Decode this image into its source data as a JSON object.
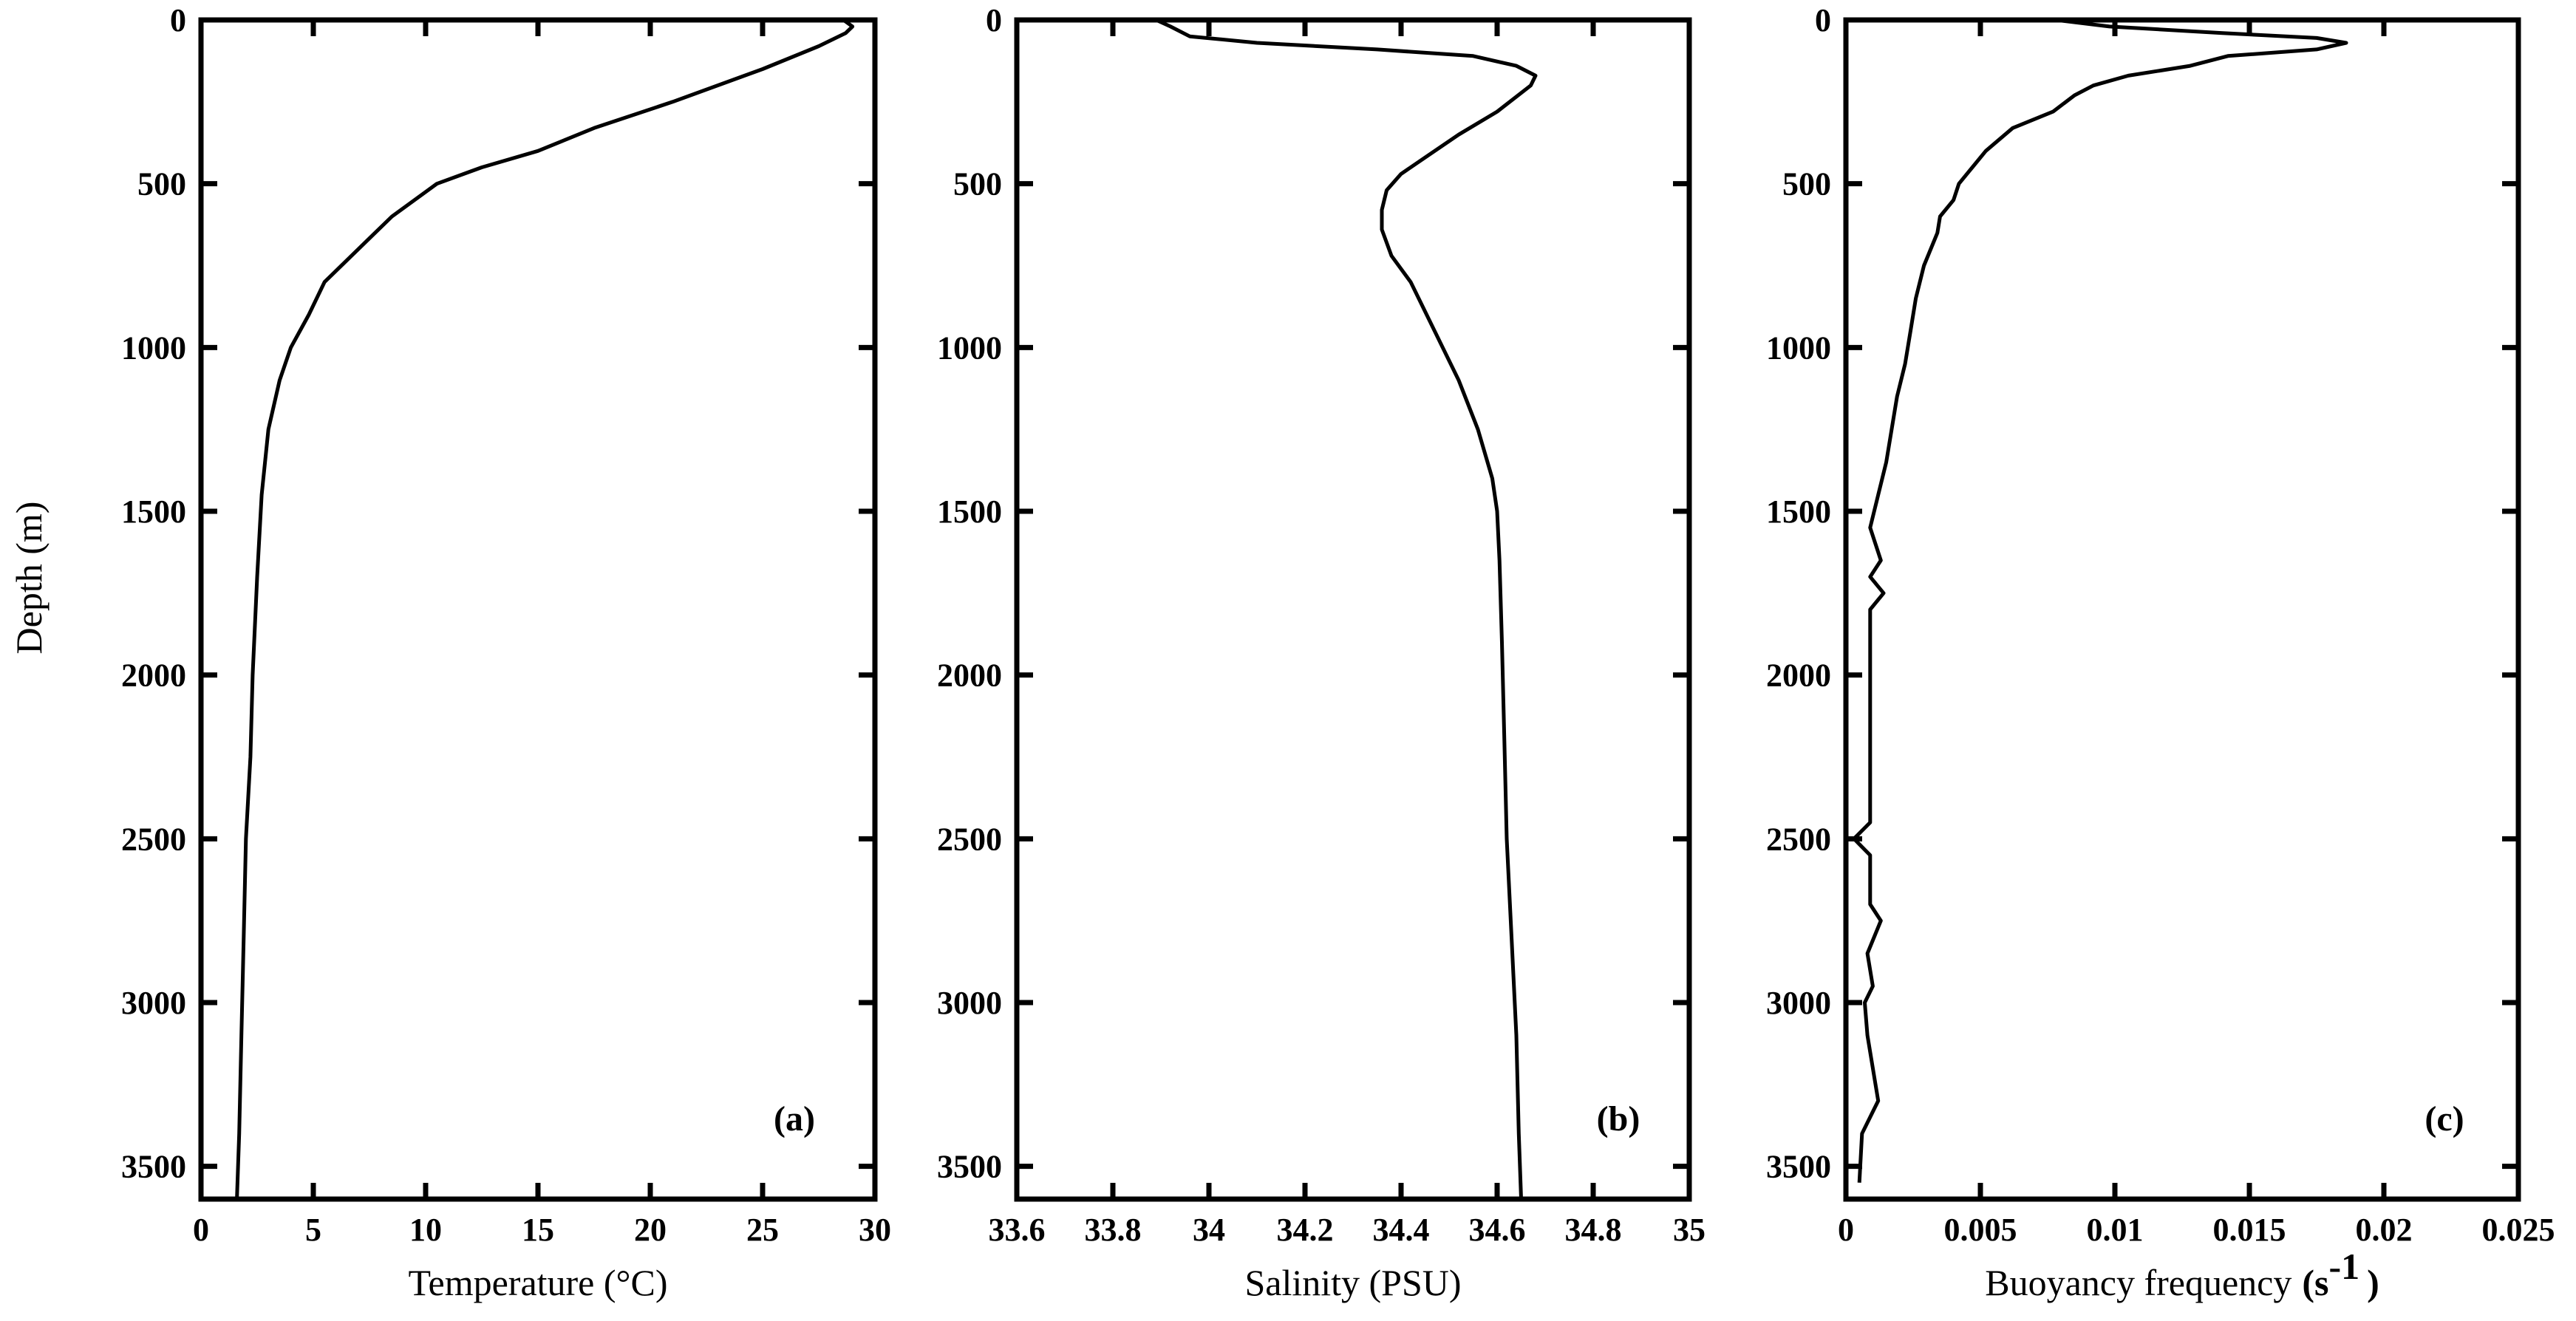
{
  "chart_data": [
    {
      "type": "line",
      "panel_label": "(a)",
      "xlabel": "Temperature (°C)",
      "ylabel": "Depth (m)",
      "xlim": [
        0,
        30
      ],
      "ylim": [
        3600,
        0
      ],
      "y_inverted": true,
      "x_ticks": [
        "0",
        "5",
        "10",
        "15",
        "20",
        "25",
        "30"
      ],
      "y_ticks": [
        "0",
        "500",
        "1000",
        "1500",
        "2000",
        "2500",
        "3000",
        "3500"
      ],
      "grid": false,
      "series": [
        {
          "x": [
            28.6,
            29.0,
            28.7,
            27.5,
            25.0,
            21.0,
            17.5,
            15.0,
            12.5,
            10.5,
            8.5,
            7.0,
            5.5,
            4.8,
            4.0,
            3.5,
            3.0,
            2.7,
            2.5,
            2.3,
            2.2,
            2.0,
            1.9,
            1.8,
            1.7,
            1.6
          ],
          "y": [
            0,
            20,
            40,
            80,
            150,
            250,
            330,
            400,
            450,
            500,
            600,
            700,
            800,
            900,
            1000,
            1100,
            1250,
            1450,
            1700,
            2000,
            2250,
            2500,
            2800,
            3100,
            3400,
            3600
          ]
        }
      ]
    },
    {
      "type": "line",
      "panel_label": "(b)",
      "xlabel": "Salinity (PSU)",
      "ylabel": "",
      "xlim": [
        33.6,
        35
      ],
      "ylim": [
        3600,
        0
      ],
      "y_inverted": true,
      "x_ticks": [
        "33.6",
        "33.8",
        "34",
        "34.2",
        "34.4",
        "34.6",
        "34.8",
        "35"
      ],
      "y_ticks": [
        "0",
        "500",
        "1000",
        "1500",
        "2000",
        "2500",
        "3000",
        "3500"
      ],
      "grid": false,
      "series": [
        {
          "x": [
            33.89,
            33.92,
            33.96,
            34.1,
            34.35,
            34.55,
            34.64,
            34.68,
            34.67,
            34.6,
            34.52,
            34.45,
            34.4,
            34.37,
            34.36,
            34.36,
            34.38,
            34.42,
            34.47,
            34.52,
            34.56,
            34.59,
            34.6,
            34.605,
            34.61,
            34.615,
            34.62,
            34.63,
            34.64,
            34.645,
            34.65
          ],
          "y": [
            0,
            20,
            50,
            70,
            90,
            110,
            140,
            170,
            200,
            280,
            350,
            420,
            470,
            520,
            580,
            640,
            720,
            800,
            950,
            1100,
            1250,
            1400,
            1500,
            1650,
            1900,
            2200,
            2500,
            2800,
            3100,
            3400,
            3600
          ]
        }
      ]
    },
    {
      "type": "line",
      "panel_label": "(c)",
      "xlabel": "Buoyancy frequency",
      "xlabel_unit_base": "s",
      "xlabel_unit_exp": "-1",
      "ylabel": "",
      "xlim": [
        0,
        0.025
      ],
      "ylim": [
        3600,
        0
      ],
      "y_inverted": true,
      "x_ticks": [
        "0",
        "0.005",
        "0.01",
        "0.015",
        "0.02",
        "0.025"
      ],
      "y_ticks": [
        "0",
        "500",
        "1000",
        "1500",
        "2000",
        "2500",
        "3000",
        "3500"
      ],
      "grid": false,
      "series": [
        {
          "x": [
            0.0078,
            0.0098,
            0.014,
            0.0175,
            0.0186,
            0.0175,
            0.0142,
            0.0128,
            0.0105,
            0.0092,
            0.0085,
            0.0077,
            0.0062,
            0.0052,
            0.0047,
            0.0042,
            0.004,
            0.0035,
            0.0034,
            0.0029,
            0.0026,
            0.0024,
            0.0022,
            0.0019,
            0.0017,
            0.0015,
            0.0012,
            0.0009,
            0.0013,
            0.0009,
            0.0014,
            0.0009,
            0.0009,
            0.0009,
            0.0009,
            0.0003,
            0.0009,
            0.0009,
            0.0013,
            0.0008,
            0.001,
            0.0007,
            0.0008,
            0.0012,
            0.0006,
            0.0005
          ],
          "y": [
            0,
            20,
            40,
            55,
            70,
            90,
            110,
            140,
            170,
            200,
            230,
            280,
            330,
            400,
            450,
            500,
            550,
            600,
            650,
            750,
            850,
            950,
            1050,
            1150,
            1250,
            1350,
            1450,
            1550,
            1650,
            1700,
            1750,
            1800,
            1900,
            2100,
            2450,
            2500,
            2550,
            2700,
            2750,
            2850,
            2950,
            3000,
            3100,
            3300,
            3400,
            3550
          ]
        }
      ]
    }
  ]
}
